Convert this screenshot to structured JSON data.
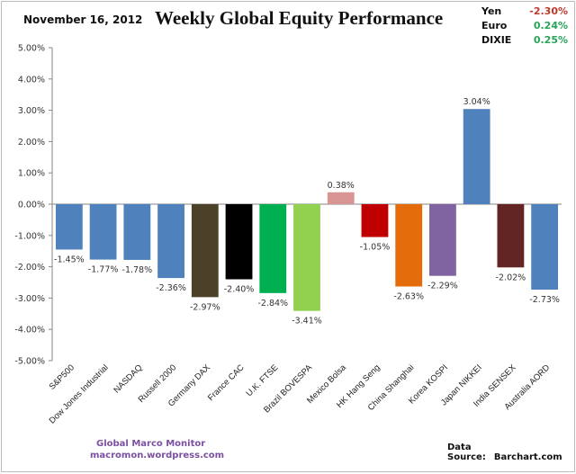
{
  "header": {
    "date": "November 16, 2012",
    "title": "Weekly Global Equity Performance"
  },
  "fx": [
    {
      "name": "Yen",
      "value": "-2.30%",
      "sign": "neg"
    },
    {
      "name": "Euro",
      "value": "0.24%",
      "sign": "pos"
    },
    {
      "name": "DIXIE",
      "value": "0.25%",
      "sign": "pos"
    }
  ],
  "footer": {
    "brand": "Global Marco Monitor",
    "site": "macromon.wordpress.com",
    "source_label": "Data Source:",
    "source": "Barchart.com"
  },
  "chart_data": {
    "type": "bar",
    "title": "Weekly Global Equity Performance",
    "xlabel": "",
    "ylabel": "",
    "ylim": [
      -5,
      5
    ],
    "yticks": [
      5,
      4,
      3,
      2,
      1,
      0,
      -1,
      -2,
      -3,
      -4,
      -5
    ],
    "ytick_labels": [
      "5.00%",
      "4.00%",
      "3.00%",
      "2.00%",
      "1.00%",
      "0.00%",
      "-1.00%",
      "-2.00%",
      "-3.00%",
      "-4.00%",
      "-5.00%"
    ],
    "grid": false,
    "legend": "none",
    "categories": [
      "S&P500",
      "Dow Jones Industrial",
      "NASDAQ",
      "Russell 2000",
      "Germany DAX",
      "France CAC",
      "U.K. FTSE",
      "Brazil BOVESPA",
      "Mexico Bolsa",
      "HK Hang Seng",
      "China Shanghai",
      "Korea KOSPI",
      "Japan NIKKEI",
      "India SENSEX",
      "Australia AORD"
    ],
    "values": [
      -1.45,
      -1.77,
      -1.78,
      -2.36,
      -2.97,
      -2.4,
      -2.84,
      -3.41,
      0.38,
      -1.05,
      -2.63,
      -2.29,
      3.04,
      -2.02,
      -2.73
    ],
    "data_labels": [
      "-1.45%",
      "-1.77%",
      "-1.78%",
      "-2.36%",
      "-2.97%",
      "-2.40%",
      "-2.84%",
      "-3.41%",
      "0.38%",
      "-1.05%",
      "-2.63%",
      "-2.29%",
      "3.04%",
      "-2.02%",
      "-2.73%"
    ],
    "colors": [
      "#4f81bd",
      "#4f81bd",
      "#4f81bd",
      "#4f81bd",
      "#4a4128",
      "#000000",
      "#00b050",
      "#92d050",
      "#d99594",
      "#c00000",
      "#e46c0a",
      "#8064a2",
      "#4f81bd",
      "#632523",
      "#4f81bd"
    ]
  }
}
